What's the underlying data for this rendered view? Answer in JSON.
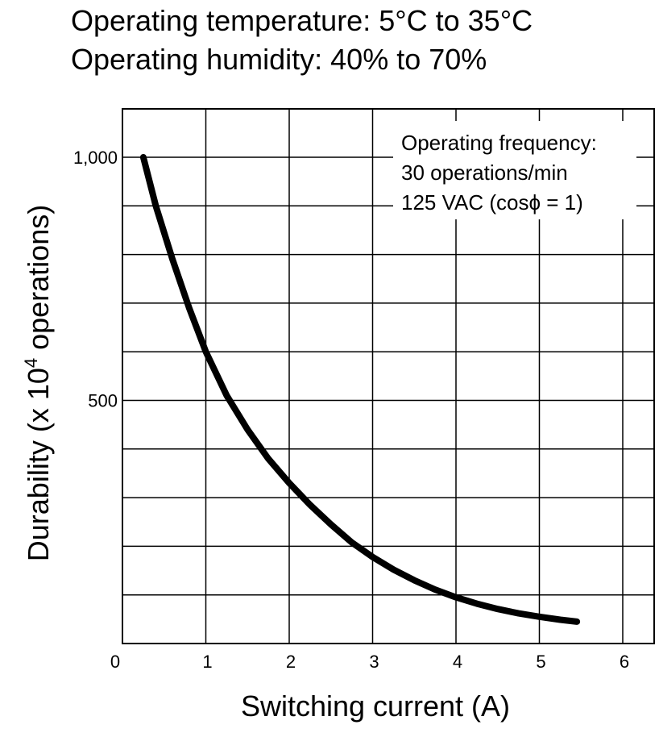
{
  "header": {
    "line1": "Operating temperature: 5°C to 35°C",
    "line2": "Operating humidity: 40% to 70%"
  },
  "chart_data": {
    "type": "line",
    "xlabel": "Switching current (A)",
    "ylabel_main": "Durability  (x 10",
    "ylabel_sup": "4",
    "ylabel_tail": " operations)",
    "xlim": [
      0,
      6.5
    ],
    "ylim": [
      0,
      1100
    ],
    "x_ticks": [
      {
        "value": 0,
        "label": "0"
      },
      {
        "value": 1,
        "label": "1"
      },
      {
        "value": 2,
        "label": "2"
      },
      {
        "value": 3,
        "label": "3"
      },
      {
        "value": 4,
        "label": "4"
      },
      {
        "value": 5,
        "label": "5"
      },
      {
        "value": 6,
        "label": "6"
      }
    ],
    "y_ticks": [
      {
        "value": 500,
        "label": "500"
      },
      {
        "value": 1000,
        "label": "1,000"
      }
    ],
    "y_gridlines": [
      100,
      200,
      300,
      400,
      500,
      600,
      700,
      800,
      900,
      1000
    ],
    "x_gridlines": [
      1,
      2,
      3,
      4,
      5,
      6
    ],
    "grid": true,
    "annotation": [
      "Operating frequency:",
      "30 operations/min",
      "125 VAC (cosϕ = 1)"
    ],
    "series": [
      {
        "points": [
          [
            0.25,
            1000
          ],
          [
            0.4,
            900
          ],
          [
            0.6,
            790
          ],
          [
            0.8,
            690
          ],
          [
            1.0,
            600
          ],
          [
            1.25,
            510
          ],
          [
            1.5,
            440
          ],
          [
            1.75,
            380
          ],
          [
            2.0,
            330
          ],
          [
            2.25,
            285
          ],
          [
            2.5,
            245
          ],
          [
            2.75,
            208
          ],
          [
            3.0,
            178
          ],
          [
            3.25,
            152
          ],
          [
            3.5,
            130
          ],
          [
            3.75,
            111
          ],
          [
            4.0,
            95
          ],
          [
            4.25,
            82
          ],
          [
            4.5,
            71
          ],
          [
            4.75,
            62
          ],
          [
            5.0,
            55
          ],
          [
            5.25,
            49
          ],
          [
            5.45,
            45
          ]
        ]
      }
    ]
  }
}
